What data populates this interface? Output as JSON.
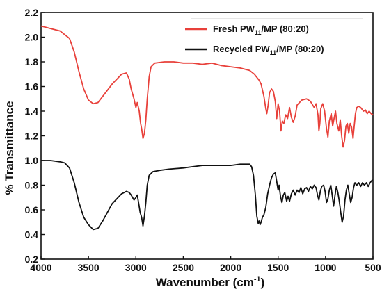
{
  "chart_data": {
    "type": "line",
    "title": "",
    "xlabel": "Wavenumber (cm",
    "xlabel_sup": "-1",
    "xlabel_tail": ")",
    "ylabel": "% Transmittance",
    "xlim": [
      4000,
      500
    ],
    "ylim": [
      0.2,
      2.2
    ],
    "x_reversed": true,
    "grid": false,
    "legend_position": "top-right",
    "x_ticks": [
      "4000",
      "3500",
      "3000",
      "2500",
      "2000",
      "1500",
      "1000",
      "500"
    ],
    "y_ticks": [
      "0.2",
      "0.4",
      "0.6",
      "0.8",
      "1.0",
      "1.2",
      "1.4",
      "1.6",
      "1.8",
      "2.0",
      "2.2"
    ],
    "series": [
      {
        "name": "Fresh PW11/MP (80:20)",
        "name_parts": [
          "Fresh PW",
          "11",
          "/MP (80:20)"
        ],
        "color": "#e8403a",
        "points": [
          [
            4000,
            2.09
          ],
          [
            3900,
            2.07
          ],
          [
            3800,
            2.05
          ],
          [
            3700,
            1.99
          ],
          [
            3650,
            1.88
          ],
          [
            3600,
            1.72
          ],
          [
            3550,
            1.58
          ],
          [
            3500,
            1.49
          ],
          [
            3450,
            1.46
          ],
          [
            3400,
            1.47
          ],
          [
            3350,
            1.52
          ],
          [
            3300,
            1.57
          ],
          [
            3250,
            1.62
          ],
          [
            3200,
            1.66
          ],
          [
            3150,
            1.7
          ],
          [
            3100,
            1.71
          ],
          [
            3070,
            1.66
          ],
          [
            3050,
            1.58
          ],
          [
            3020,
            1.5
          ],
          [
            3000,
            1.43
          ],
          [
            2985,
            1.47
          ],
          [
            2965,
            1.4
          ],
          [
            2950,
            1.3
          ],
          [
            2940,
            1.26
          ],
          [
            2925,
            1.18
          ],
          [
            2910,
            1.22
          ],
          [
            2895,
            1.33
          ],
          [
            2880,
            1.5
          ],
          [
            2860,
            1.68
          ],
          [
            2840,
            1.76
          ],
          [
            2800,
            1.79
          ],
          [
            2700,
            1.8
          ],
          [
            2600,
            1.8
          ],
          [
            2500,
            1.79
          ],
          [
            2400,
            1.79
          ],
          [
            2300,
            1.78
          ],
          [
            2200,
            1.79
          ],
          [
            2100,
            1.77
          ],
          [
            2000,
            1.76
          ],
          [
            1900,
            1.75
          ],
          [
            1800,
            1.73
          ],
          [
            1750,
            1.7
          ],
          [
            1700,
            1.65
          ],
          [
            1680,
            1.62
          ],
          [
            1650,
            1.52
          ],
          [
            1630,
            1.42
          ],
          [
            1620,
            1.38
          ],
          [
            1605,
            1.45
          ],
          [
            1590,
            1.55
          ],
          [
            1570,
            1.58
          ],
          [
            1550,
            1.56
          ],
          [
            1530,
            1.48
          ],
          [
            1515,
            1.34
          ],
          [
            1500,
            1.46
          ],
          [
            1485,
            1.4
          ],
          [
            1470,
            1.24
          ],
          [
            1455,
            1.32
          ],
          [
            1440,
            1.3
          ],
          [
            1420,
            1.37
          ],
          [
            1400,
            1.34
          ],
          [
            1380,
            1.43
          ],
          [
            1360,
            1.35
          ],
          [
            1340,
            1.31
          ],
          [
            1320,
            1.36
          ],
          [
            1300,
            1.45
          ],
          [
            1250,
            1.49
          ],
          [
            1200,
            1.5
          ],
          [
            1160,
            1.48
          ],
          [
            1120,
            1.43
          ],
          [
            1100,
            1.46
          ],
          [
            1080,
            1.37
          ],
          [
            1070,
            1.24
          ],
          [
            1060,
            1.3
          ],
          [
            1050,
            1.42
          ],
          [
            1030,
            1.46
          ],
          [
            1010,
            1.4
          ],
          [
            990,
            1.26
          ],
          [
            975,
            1.19
          ],
          [
            960,
            1.32
          ],
          [
            940,
            1.38
          ],
          [
            925,
            1.28
          ],
          [
            910,
            1.34
          ],
          [
            895,
            1.4
          ],
          [
            880,
            1.3
          ],
          [
            860,
            1.24
          ],
          [
            845,
            1.33
          ],
          [
            830,
            1.2
          ],
          [
            815,
            1.11
          ],
          [
            800,
            1.16
          ],
          [
            785,
            1.28
          ],
          [
            770,
            1.3
          ],
          [
            755,
            1.22
          ],
          [
            740,
            1.3
          ],
          [
            725,
            1.27
          ],
          [
            710,
            1.18
          ],
          [
            700,
            1.26
          ],
          [
            685,
            1.38
          ],
          [
            670,
            1.43
          ],
          [
            650,
            1.44
          ],
          [
            630,
            1.43
          ],
          [
            600,
            1.4
          ],
          [
            580,
            1.41
          ],
          [
            560,
            1.38
          ],
          [
            540,
            1.4
          ],
          [
            520,
            1.38
          ],
          [
            500,
            1.37
          ]
        ]
      },
      {
        "name": "Recycled PW11/MP (80:20)",
        "name_parts": [
          "Recycled PW",
          "11",
          "/MP (80:20)"
        ],
        "color": "#111111",
        "points": [
          [
            4000,
            1.0
          ],
          [
            3900,
            1.0
          ],
          [
            3800,
            0.99
          ],
          [
            3750,
            0.98
          ],
          [
            3700,
            0.94
          ],
          [
            3650,
            0.82
          ],
          [
            3600,
            0.66
          ],
          [
            3550,
            0.54
          ],
          [
            3500,
            0.48
          ],
          [
            3450,
            0.44
          ],
          [
            3400,
            0.45
          ],
          [
            3350,
            0.51
          ],
          [
            3300,
            0.58
          ],
          [
            3250,
            0.65
          ],
          [
            3200,
            0.69
          ],
          [
            3150,
            0.73
          ],
          [
            3100,
            0.75
          ],
          [
            3070,
            0.74
          ],
          [
            3050,
            0.72
          ],
          [
            3020,
            0.68
          ],
          [
            3000,
            0.7
          ],
          [
            2985,
            0.72
          ],
          [
            2970,
            0.65
          ],
          [
            2955,
            0.58
          ],
          [
            2940,
            0.54
          ],
          [
            2925,
            0.47
          ],
          [
            2910,
            0.55
          ],
          [
            2895,
            0.66
          ],
          [
            2880,
            0.8
          ],
          [
            2860,
            0.88
          ],
          [
            2820,
            0.91
          ],
          [
            2750,
            0.92
          ],
          [
            2650,
            0.93
          ],
          [
            2500,
            0.94
          ],
          [
            2400,
            0.95
          ],
          [
            2300,
            0.96
          ],
          [
            2200,
            0.96
          ],
          [
            2100,
            0.96
          ],
          [
            2000,
            0.96
          ],
          [
            1900,
            0.97
          ],
          [
            1850,
            0.97
          ],
          [
            1800,
            0.97
          ],
          [
            1780,
            0.95
          ],
          [
            1760,
            0.88
          ],
          [
            1740,
            0.72
          ],
          [
            1725,
            0.55
          ],
          [
            1710,
            0.49
          ],
          [
            1700,
            0.51
          ],
          [
            1690,
            0.48
          ],
          [
            1680,
            0.5
          ],
          [
            1665,
            0.54
          ],
          [
            1650,
            0.56
          ],
          [
            1630,
            0.62
          ],
          [
            1610,
            0.73
          ],
          [
            1590,
            0.8
          ],
          [
            1570,
            0.86
          ],
          [
            1550,
            0.89
          ],
          [
            1530,
            0.9
          ],
          [
            1515,
            0.83
          ],
          [
            1500,
            0.76
          ],
          [
            1490,
            0.8
          ],
          [
            1475,
            0.71
          ],
          [
            1460,
            0.66
          ],
          [
            1445,
            0.72
          ],
          [
            1430,
            0.74
          ],
          [
            1410,
            0.67
          ],
          [
            1395,
            0.71
          ],
          [
            1380,
            0.67
          ],
          [
            1360,
            0.73
          ],
          [
            1340,
            0.76
          ],
          [
            1320,
            0.72
          ],
          [
            1300,
            0.76
          ],
          [
            1280,
            0.74
          ],
          [
            1260,
            0.78
          ],
          [
            1240,
            0.73
          ],
          [
            1220,
            0.77
          ],
          [
            1200,
            0.78
          ],
          [
            1180,
            0.75
          ],
          [
            1160,
            0.79
          ],
          [
            1140,
            0.77
          ],
          [
            1120,
            0.8
          ],
          [
            1100,
            0.78
          ],
          [
            1085,
            0.72
          ],
          [
            1070,
            0.68
          ],
          [
            1055,
            0.75
          ],
          [
            1040,
            0.79
          ],
          [
            1020,
            0.8
          ],
          [
            1005,
            0.75
          ],
          [
            990,
            0.66
          ],
          [
            975,
            0.69
          ],
          [
            960,
            0.76
          ],
          [
            945,
            0.8
          ],
          [
            930,
            0.72
          ],
          [
            915,
            0.63
          ],
          [
            900,
            0.72
          ],
          [
            885,
            0.79
          ],
          [
            870,
            0.74
          ],
          [
            855,
            0.67
          ],
          [
            840,
            0.58
          ],
          [
            825,
            0.5
          ],
          [
            810,
            0.55
          ],
          [
            795,
            0.68
          ],
          [
            780,
            0.76
          ],
          [
            765,
            0.8
          ],
          [
            750,
            0.73
          ],
          [
            735,
            0.66
          ],
          [
            720,
            0.7
          ],
          [
            705,
            0.78
          ],
          [
            690,
            0.82
          ],
          [
            670,
            0.8
          ],
          [
            650,
            0.82
          ],
          [
            630,
            0.79
          ],
          [
            610,
            0.82
          ],
          [
            590,
            0.8
          ],
          [
            570,
            0.82
          ],
          [
            550,
            0.79
          ],
          [
            530,
            0.82
          ],
          [
            510,
            0.84
          ],
          [
            500,
            0.84
          ]
        ]
      }
    ]
  }
}
